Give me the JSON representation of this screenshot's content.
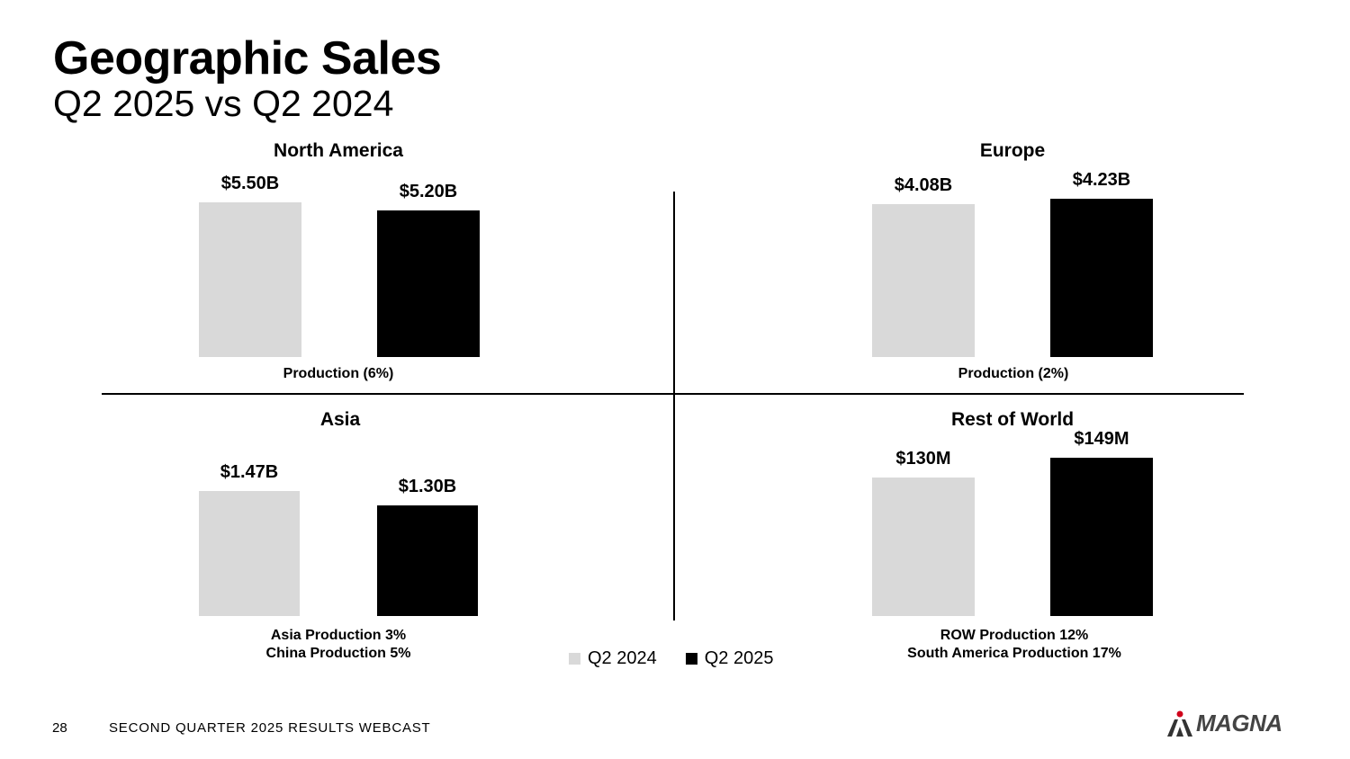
{
  "page": {
    "title": "Geographic Sales",
    "subtitle": "Q2 2025 vs Q2 2024",
    "page_number": "28",
    "footer": "SECOND QUARTER 2025 RESULTS WEBCAST",
    "logo_text": "MAGNA"
  },
  "colors": {
    "q2_2024": "#d9d9d9",
    "q2_2025": "#000000",
    "brand_red": "#d0021b"
  },
  "legend": [
    {
      "label": "Q2 2024",
      "color": "#d9d9d9"
    },
    {
      "label": "Q2 2025",
      "color": "#000000"
    }
  ],
  "chart_data": [
    {
      "type": "bar",
      "title": "North America",
      "categories": [
        "Q2 2024",
        "Q2 2025"
      ],
      "values": [
        5.5,
        5.2
      ],
      "unit": "billions USD",
      "data_labels": [
        "$5.50B",
        "$5.20B"
      ],
      "ylim": [
        0,
        5.5
      ],
      "note_lines": [
        "Production (6%)"
      ]
    },
    {
      "type": "bar",
      "title": "Europe",
      "categories": [
        "Q2 2024",
        "Q2 2025"
      ],
      "values": [
        4.08,
        4.23
      ],
      "unit": "billions USD",
      "data_labels": [
        "$4.08B",
        "$4.23B"
      ],
      "ylim": [
        0,
        4.23
      ],
      "note_lines": [
        "Production (2%)"
      ]
    },
    {
      "type": "bar",
      "title": "Asia",
      "categories": [
        "Q2 2024",
        "Q2 2025"
      ],
      "values": [
        1.47,
        1.3
      ],
      "unit": "billions USD",
      "data_labels": [
        "$1.47B",
        "$1.30B"
      ],
      "ylim": [
        0,
        1.47
      ],
      "note_lines": [
        "Asia Production 3%",
        "China Production 5%"
      ]
    },
    {
      "type": "bar",
      "title": "Rest of World",
      "categories": [
        "Q2 2024",
        "Q2 2025"
      ],
      "values": [
        130,
        149
      ],
      "unit": "millions USD",
      "data_labels": [
        "$130M",
        "$149M"
      ],
      "ylim": [
        0,
        149
      ],
      "note_lines": [
        "ROW Production 12%",
        "South America Production 17%"
      ]
    }
  ]
}
